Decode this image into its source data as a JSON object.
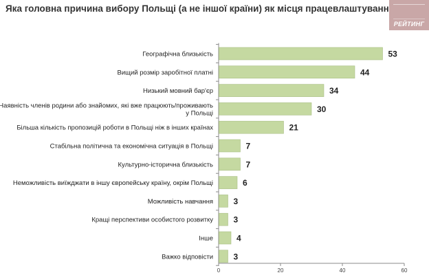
{
  "title": "Яка головна причина вибору Польщі (а не іншої країни) як місця працевлаштування?",
  "logo": {
    "text": "РЕЙТИНГ",
    "color": "#c9a7a7"
  },
  "chart_data": {
    "type": "bar",
    "orientation": "horizontal",
    "title": "Яка головна причина вибору Польщі (а не іншої країни) як місця працевлаштування?",
    "categories": [
      [
        "Географічна близькість"
      ],
      [
        "Вищий розмір заробітної платні"
      ],
      [
        "Низький мовний бар'єр"
      ],
      [
        "Наявність членів родини або знайомих, які вже працюють/проживають",
        "у Польщі"
      ],
      [
        "Більша кількість пропозицій роботи в Польщі ніж в інших країнах"
      ],
      [
        "Стабільна політична та економічна ситуація в Польщі"
      ],
      [
        "Культурно-історична близькість"
      ],
      [
        "Неможливість виїжджати в іншу європейську країну, окрім Польщі"
      ],
      [
        "Можливість навчання"
      ],
      [
        "Кращі перспективи особистого розвитку"
      ],
      [
        "Інше"
      ],
      [
        "Важко відповісти"
      ]
    ],
    "values": [
      53,
      44,
      34,
      30,
      21,
      7,
      7,
      6,
      3,
      3,
      4,
      3
    ],
    "value_labels": [
      "53",
      "44",
      "34",
      "30",
      "21",
      "7",
      "7",
      "6",
      "3",
      "3",
      "4",
      "3"
    ],
    "xlim": [
      0,
      60
    ],
    "xticks": [
      0,
      20,
      40,
      60
    ],
    "xtick_labels": [
      "0",
      "20",
      "40",
      "60"
    ],
    "bar_color": "#c5d9a1",
    "bar_edge_color": "#a9bf85",
    "grid": false,
    "legend": "none"
  }
}
